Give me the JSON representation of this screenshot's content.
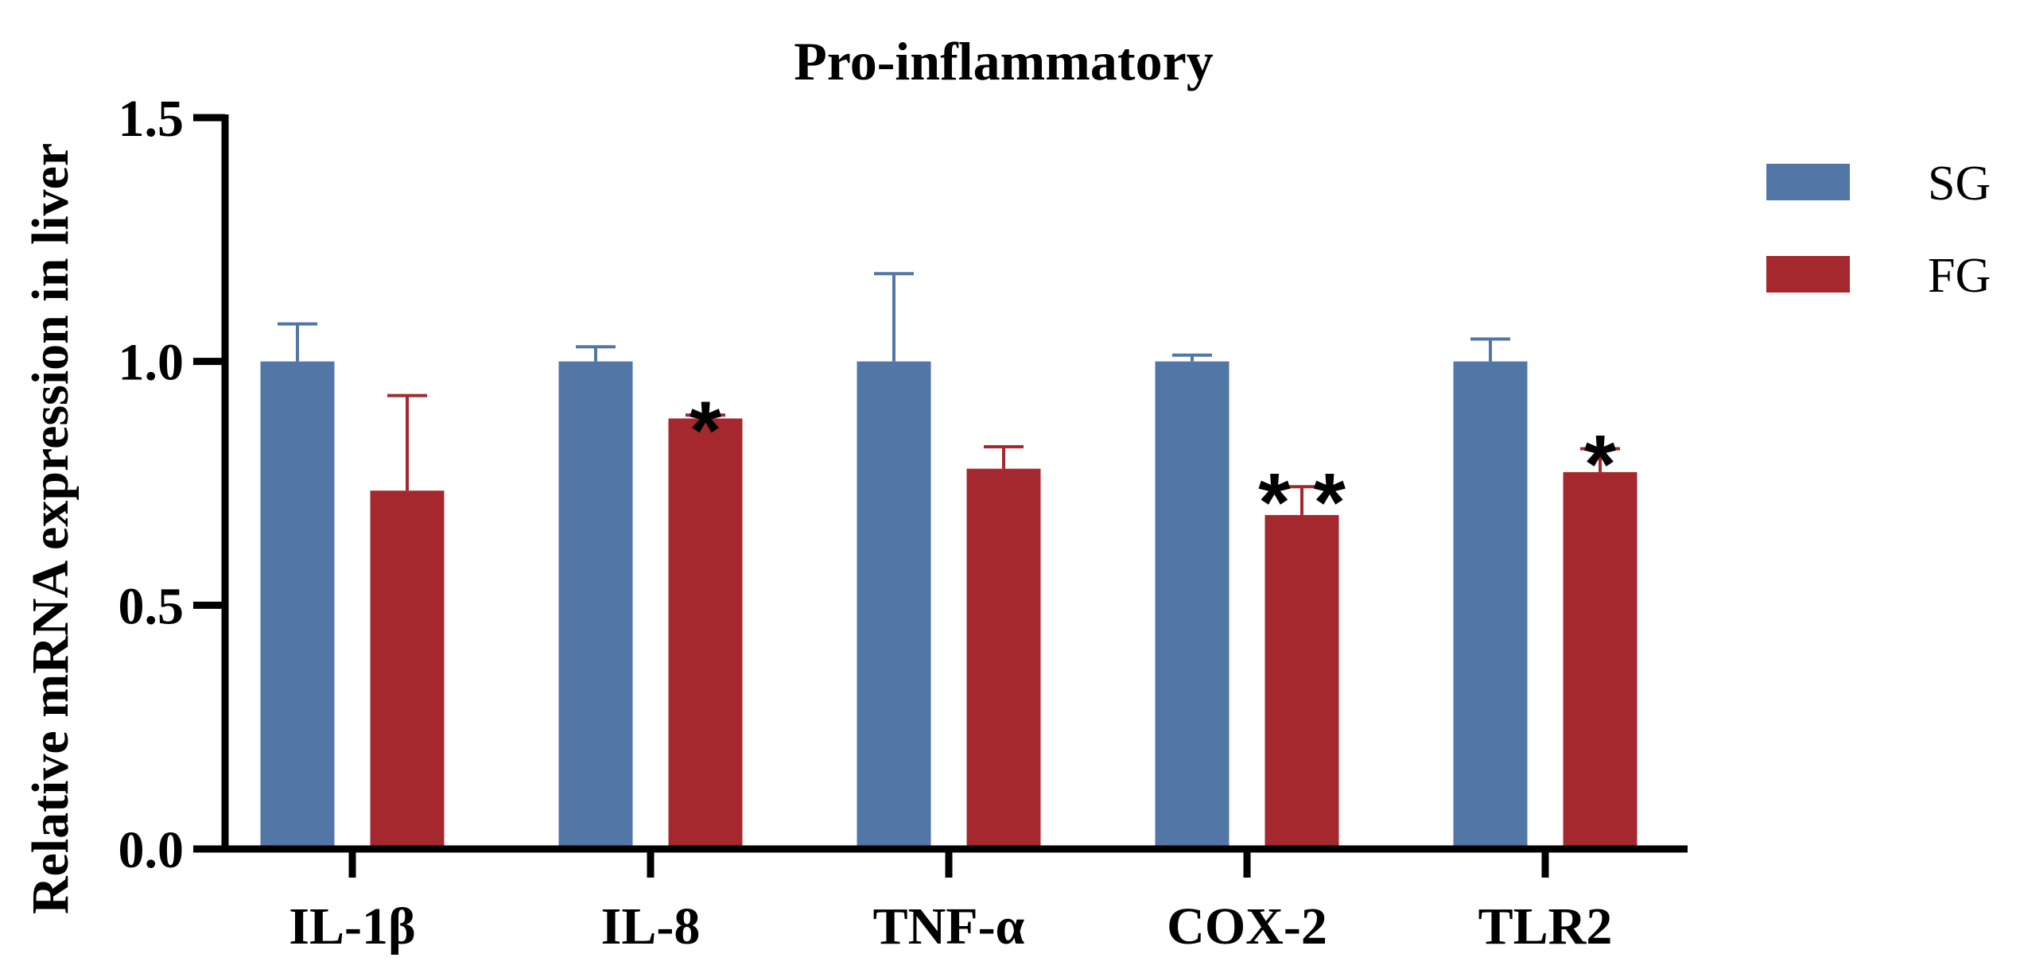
{
  "chart_data": {
    "type": "bar",
    "title": "Pro-inflammatory",
    "xlabel": "",
    "ylabel": "Relative mRNA expression in liver",
    "ylim": [
      0,
      1.5
    ],
    "yticks": [
      "0.0",
      "0.5",
      "1.0",
      "1.5"
    ],
    "ytick_values": [
      0,
      0.5,
      1.0,
      1.5
    ],
    "categories": [
      "IL-1β",
      "IL-8",
      "TNF-α",
      "COX-2",
      "TLR2"
    ],
    "series": [
      {
        "name": "SG",
        "color": "#5276a5",
        "values": [
          1.0,
          1.0,
          1.0,
          1.0,
          1.0
        ],
        "errors": [
          0.077,
          0.03,
          0.18,
          0.013,
          0.046
        ]
      },
      {
        "name": "FG",
        "color": "#a4282e",
        "values": [
          0.735,
          0.883,
          0.78,
          0.685,
          0.773
        ],
        "errors": [
          0.195,
          0.007,
          0.045,
          0.058,
          0.048
        ]
      }
    ],
    "significance": [
      "",
      "*",
      "",
      "* *",
      "*"
    ],
    "legend_position": "top-right",
    "grid": false
  }
}
